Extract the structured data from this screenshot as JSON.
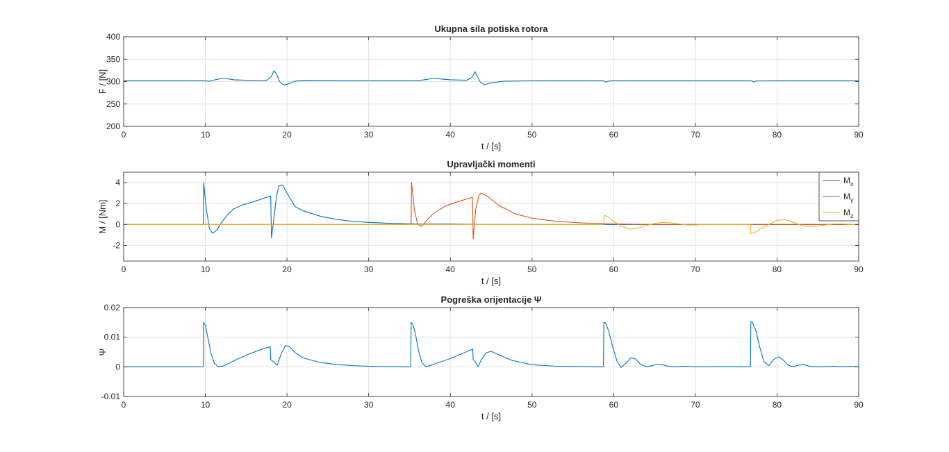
{
  "chart_data": [
    {
      "type": "line",
      "title": "Ukupna sila potiska rotora",
      "xlabel": "t / [s]",
      "ylabel": "F / [N]",
      "xlim": [
        0,
        90
      ],
      "ylim": [
        200,
        400
      ],
      "xticks": [
        0,
        10,
        20,
        30,
        40,
        50,
        60,
        70,
        80,
        90
      ],
      "yticks": [
        200,
        250,
        300,
        350,
        400
      ],
      "grid": true,
      "series": [
        {
          "color": "#0072BD",
          "x": [
            0,
            9.8,
            10.5,
            11.2,
            12,
            12.8,
            13.5,
            15,
            17.5,
            18.1,
            18.4,
            18.7,
            19.1,
            19.6,
            20.2,
            21,
            22,
            30,
            35.3,
            35.9,
            36.8,
            37.8,
            38.7,
            40,
            42,
            42.7,
            43,
            43.3,
            43.7,
            44.2,
            45,
            46.5,
            50,
            58.8,
            58.9,
            59.05,
            59.3,
            59.8,
            65,
            76.8,
            76.95,
            77.15,
            77.5,
            80,
            90
          ],
          "y": [
            302,
            302,
            301,
            304,
            307,
            306,
            304,
            303,
            302.5,
            312,
            324,
            318,
            300,
            292,
            295,
            301,
            303,
            302,
            302,
            302,
            304,
            307,
            306,
            304,
            303,
            310,
            322,
            312,
            298,
            293,
            297,
            301,
            302,
            302,
            301,
            298,
            301,
            302,
            302,
            302,
            301,
            299,
            301.5,
            302,
            302
          ]
        }
      ]
    },
    {
      "type": "line",
      "title": "Upravljački momenti",
      "xlabel": "t / [s]",
      "ylabel": "M / [Nm]",
      "xlim": [
        0,
        90
      ],
      "ylim": [
        -3.5,
        5
      ],
      "xticks": [
        0,
        10,
        20,
        30,
        40,
        50,
        60,
        70,
        80,
        90
      ],
      "yticks": [
        -2,
        0,
        2,
        4
      ],
      "grid": true,
      "legend": "top-right",
      "series": [
        {
          "name": "M",
          "subscript": "x",
          "color": "#0072BD",
          "x": [
            0,
            9.75,
            9.8,
            10.1,
            10.5,
            10.9,
            11.4,
            12,
            12.8,
            13.5,
            14.5,
            16,
            17.5,
            17.95,
            18,
            18.05,
            18.1,
            18.4,
            18.7,
            19,
            19.5,
            20,
            21,
            22,
            24,
            26,
            28,
            30,
            33,
            36,
            40,
            45,
            90
          ],
          "y": [
            0,
            0,
            4,
            1.6,
            -0.4,
            -0.85,
            -0.55,
            0.2,
            1.0,
            1.5,
            1.85,
            2.2,
            2.6,
            2.7,
            2.75,
            0.8,
            -1.3,
            0.6,
            2.6,
            3.7,
            3.75,
            3.0,
            1.7,
            1.3,
            0.8,
            0.5,
            0.3,
            0.2,
            0.1,
            0.05,
            0.05,
            0,
            0
          ]
        },
        {
          "name": "M",
          "subscript": "y",
          "color": "#D95319",
          "x": [
            0,
            35.2,
            35.25,
            35.6,
            36,
            36.5,
            37,
            38,
            39.5,
            41,
            42.5,
            42.7,
            42.75,
            42.8,
            43.1,
            43.5,
            43.8,
            44.5,
            46,
            48,
            50,
            53,
            56,
            60,
            65,
            90
          ],
          "y": [
            0,
            0,
            4,
            1.4,
            0.0,
            -0.2,
            0.3,
            1.1,
            1.8,
            2.2,
            2.55,
            2.6,
            1.0,
            -1.4,
            1.4,
            2.8,
            3.0,
            2.7,
            1.8,
            1.0,
            0.6,
            0.3,
            0.15,
            0.05,
            0,
            0
          ]
        },
        {
          "name": "M",
          "subscript": "z",
          "color": "#EDB120",
          "x": [
            0,
            58.8,
            58.85,
            59.3,
            60,
            61,
            62,
            63,
            64,
            65,
            66,
            67,
            68,
            69,
            70,
            71,
            72,
            74,
            76.75,
            76.8,
            77.3,
            78,
            79,
            80,
            81,
            82,
            83,
            84,
            85,
            86,
            87,
            88,
            89,
            90
          ],
          "y": [
            0,
            0,
            0.85,
            0.75,
            0.3,
            -0.2,
            -0.45,
            -0.35,
            -0.1,
            0.1,
            0.2,
            0.15,
            0.05,
            -0.05,
            -0.05,
            0,
            0,
            0,
            0,
            -0.9,
            -0.75,
            -0.4,
            0.0,
            0.4,
            0.45,
            0.2,
            -0.1,
            -0.2,
            -0.15,
            -0.05,
            0.05,
            0.05,
            0,
            0
          ]
        }
      ]
    },
    {
      "type": "line",
      "title": "Pogreška orijentacije Ψ",
      "xlabel": "t / [s]",
      "ylabel": "Ψ",
      "xlim": [
        0,
        90
      ],
      "ylim": [
        -0.01,
        0.02
      ],
      "xticks": [
        0,
        10,
        20,
        30,
        40,
        50,
        60,
        70,
        80,
        90
      ],
      "yticks": [
        -0.01,
        0,
        0.01,
        0.02
      ],
      "grid": true,
      "series": [
        {
          "color": "#0072BD",
          "x": [
            0,
            9.75,
            9.8,
            10.0,
            10.3,
            10.7,
            11.1,
            11.6,
            12.2,
            13,
            14,
            15.5,
            17,
            17.95,
            18,
            18.4,
            18.8,
            19.3,
            19.8,
            20.3,
            21,
            22,
            24,
            26,
            28,
            30,
            32,
            35.15,
            35.2,
            35.4,
            35.7,
            36.1,
            36.5,
            37,
            37.5,
            38.5,
            40,
            41.5,
            42.75,
            42.8,
            43.1,
            43.4,
            43.8,
            44.4,
            45,
            46,
            47.5,
            50,
            53,
            56,
            58.75,
            58.8,
            59.0,
            59.4,
            59.9,
            60.4,
            60.9,
            61.5,
            62.1,
            62.7,
            63.3,
            64,
            64.7,
            65.3,
            66,
            66.7,
            67.5,
            68.5,
            70,
            73,
            76.75,
            76.8,
            77.0,
            77.4,
            77.9,
            78.4,
            79,
            79.6,
            80.2,
            80.8,
            81.4,
            82,
            82.6,
            83.3,
            84,
            85,
            86,
            87,
            88,
            89,
            90
          ],
          "y": [
            0,
            0,
            0.015,
            0.014,
            0.01,
            0.0045,
            0.0012,
            0.0,
            0.0003,
            0.0013,
            0.0027,
            0.0045,
            0.006,
            0.0068,
            0.0025,
            0.0015,
            0.0005,
            0.0045,
            0.0072,
            0.0068,
            0.0048,
            0.003,
            0.0015,
            0.0008,
            0.0004,
            0.0002,
            0.0001,
            0,
            0.015,
            0.0145,
            0.0115,
            0.0055,
            0.0015,
            0.0,
            0.0004,
            0.0014,
            0.0028,
            0.0045,
            0.006,
            0.0025,
            0.0015,
            0.0,
            0.0025,
            0.0048,
            0.0052,
            0.004,
            0.0022,
            0.0007,
            0.0002,
            0.0001,
            0,
            0.015,
            0.0148,
            0.012,
            0.0065,
            0.002,
            -0.0002,
            0.0012,
            0.0031,
            0.0026,
            0.0008,
            0.0,
            0.0004,
            0.0009,
            0.0007,
            0.0002,
            0.0,
            0.0002,
            0.0,
            0.0001,
            0,
            0.0153,
            0.015,
            0.0123,
            0.0065,
            0.0018,
            0.0004,
            0.0025,
            0.0034,
            0.0022,
            0.0005,
            0.0,
            0.0006,
            0.0007,
            0.0002,
            0.0,
            0.0001,
            0.0002,
            0.0,
            0.0002,
            0.0
          ]
        }
      ]
    }
  ]
}
